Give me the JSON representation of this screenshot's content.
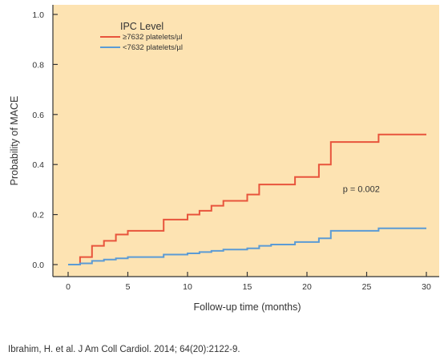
{
  "chart_data": {
    "type": "line",
    "xlabel": "Follow-up time (months)",
    "ylabel": "Probability of MACE",
    "xlim": [
      0,
      30
    ],
    "ylim": [
      0,
      1.0
    ],
    "xticks": [
      0,
      5,
      10,
      15,
      20,
      25,
      30
    ],
    "yticks": [
      0.0,
      0.2,
      0.4,
      0.6,
      0.8,
      1.0
    ],
    "ytick_labels": [
      "0.0",
      "0.2",
      "0.4",
      "0.6",
      "0.8",
      "1.0"
    ],
    "grid": false,
    "legend": {
      "title": "IPC Level",
      "placement": "top-left"
    },
    "annotation": "p = 0.002",
    "annotation_position": {
      "x": 23,
      "y": 0.29
    },
    "plot_background": "#fde3b2",
    "series": [
      {
        "name": "≥7632 platelets/µl",
        "color": "#e8543c",
        "step": true,
        "x": [
          0,
          1,
          2,
          3,
          4,
          5,
          8,
          10,
          11,
          12,
          13,
          15,
          16,
          19,
          21,
          22,
          26,
          30
        ],
        "y": [
          0.0,
          0.03,
          0.075,
          0.095,
          0.12,
          0.135,
          0.18,
          0.2,
          0.215,
          0.235,
          0.255,
          0.28,
          0.32,
          0.35,
          0.4,
          0.49,
          0.52,
          0.52
        ]
      },
      {
        "name": "<7632 platelets/µl",
        "color": "#5b9bd5",
        "step": true,
        "x": [
          0,
          1,
          2,
          3,
          4,
          5,
          8,
          10,
          11,
          12,
          13,
          15,
          16,
          17,
          19,
          21,
          22,
          26,
          30
        ],
        "y": [
          0.0,
          0.005,
          0.015,
          0.02,
          0.025,
          0.03,
          0.04,
          0.045,
          0.05,
          0.055,
          0.06,
          0.065,
          0.075,
          0.08,
          0.09,
          0.105,
          0.135,
          0.145,
          0.145
        ]
      }
    ]
  },
  "citation": "Ibrahim, H. et al. J Am Coll Cardiol. 2014; 64(20):2122-9."
}
